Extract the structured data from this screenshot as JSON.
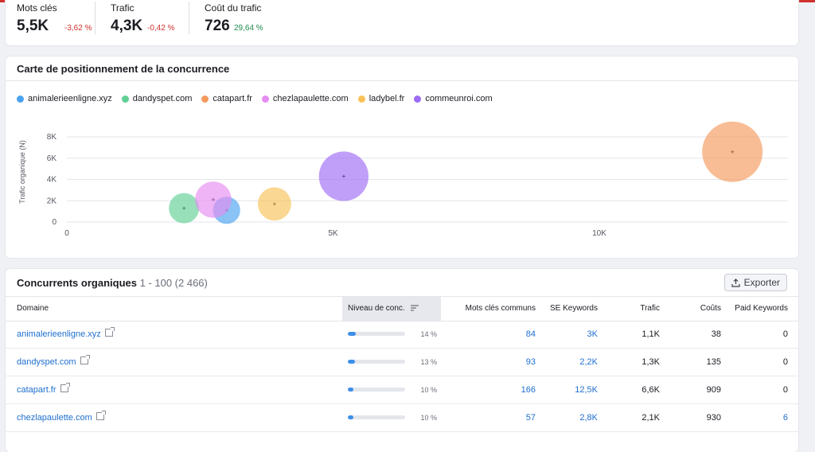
{
  "metrics": [
    {
      "label": "Mots clés",
      "value": "5,5K",
      "change": "-3,62 %",
      "trend": "negative"
    },
    {
      "label": "Trafic",
      "value": "4,3K",
      "change": "-0,42 %",
      "trend": "negative"
    },
    {
      "label": "Coût du trafic",
      "value": "726",
      "change": "29,64 %",
      "trend": "positive"
    }
  ],
  "chart": {
    "title": "Carte de positionnement de la concurrence"
  },
  "chart_data": {
    "type": "scatter",
    "ylabel": "Trafic organique (N)",
    "xlabel": "",
    "xlim": [
      0,
      13500
    ],
    "ylim": [
      0,
      9000
    ],
    "x_ticks": [
      {
        "value": 0,
        "label": "0"
      },
      {
        "value": 5000,
        "label": "5K"
      },
      {
        "value": 10000,
        "label": "10K"
      }
    ],
    "y_ticks": [
      {
        "value": 0,
        "label": "0"
      },
      {
        "value": 2000,
        "label": "2K"
      },
      {
        "value": 4000,
        "label": "4K"
      },
      {
        "value": 6000,
        "label": "6K"
      },
      {
        "value": 8000,
        "label": "8K"
      }
    ],
    "legend": "top-left",
    "grid": true,
    "series": [
      {
        "name": "animalerieenligne.xyz",
        "color": "#4ba3f0",
        "x": 3000,
        "y": 1100,
        "size": 0.45
      },
      {
        "name": "dandyspet.com",
        "color": "#5fcf93",
        "x": 2200,
        "y": 1300,
        "size": 0.5
      },
      {
        "name": "catapart.fr",
        "color": "#f59a5c",
        "x": 12500,
        "y": 6600,
        "size": 1.0
      },
      {
        "name": "chezlapaulette.com",
        "color": "#e58cf0",
        "x": 2750,
        "y": 2100,
        "size": 0.6
      },
      {
        "name": "ladybel.fr",
        "color": "#f8c158",
        "x": 3900,
        "y": 1700,
        "size": 0.55
      },
      {
        "name": "commeunroi.com",
        "color": "#9c6cf5",
        "x": 5200,
        "y": 4300,
        "size": 0.82
      }
    ]
  },
  "table": {
    "title": "Concurrents organiques",
    "count": "1 - 100 (2 466)",
    "export_label": "Exporter",
    "headers": {
      "domain": "Domaine",
      "level": "Niveau de conc.",
      "common": "Mots clés communs",
      "se": "SE Keywords",
      "traffic": "Trafic",
      "cost": "Coûts",
      "paid": "Paid Keywords"
    },
    "rows": [
      {
        "domain": "animalerieenligne.xyz",
        "level_pct": "14 %",
        "level": 0.14,
        "common": "84",
        "se": "3K",
        "traffic": "1,1K",
        "cost": "38",
        "paid": "0",
        "paid_link": false
      },
      {
        "domain": "dandyspet.com",
        "level_pct": "13 %",
        "level": 0.13,
        "common": "93",
        "se": "2,2K",
        "traffic": "1,3K",
        "cost": "135",
        "paid": "0",
        "paid_link": false
      },
      {
        "domain": "catapart.fr",
        "level_pct": "10 %",
        "level": 0.1,
        "common": "166",
        "se": "12,5K",
        "traffic": "6,6K",
        "cost": "909",
        "paid": "0",
        "paid_link": false
      },
      {
        "domain": "chezlapaulette.com",
        "level_pct": "10 %",
        "level": 0.1,
        "common": "57",
        "se": "2,8K",
        "traffic": "2,1K",
        "cost": "930",
        "paid": "6",
        "paid_link": true
      }
    ]
  },
  "colors": {
    "accent": "#1f6fce",
    "negative": "#d0312d",
    "positive": "#1f8a4c"
  }
}
